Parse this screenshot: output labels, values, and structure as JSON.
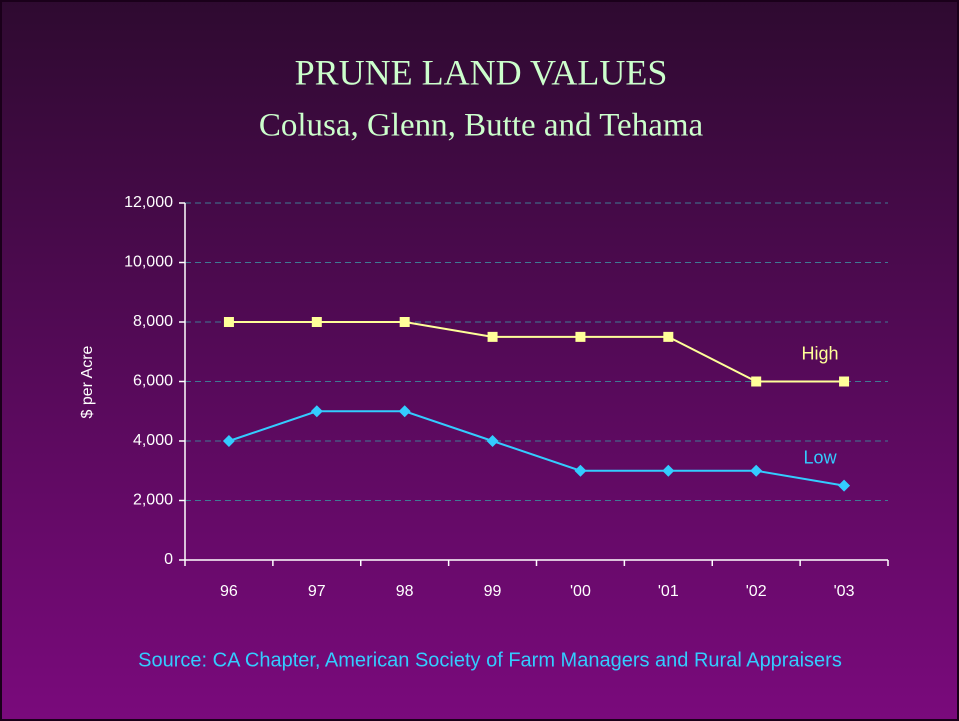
{
  "chart_data": {
    "type": "line",
    "title": "PRUNE LAND VALUES",
    "subtitle": "Colusa, Glenn, Butte and Tehama",
    "y_label": "$ per Acre",
    "source": "Source: CA Chapter, American Society of Farm Managers and Rural Appraisers",
    "categories": [
      "96",
      "97",
      "98",
      "99",
      "'00",
      "'01",
      "'02",
      "'03"
    ],
    "series": [
      {
        "name": "High",
        "color": "#ffff99",
        "marker": "square",
        "values": [
          8000,
          8000,
          8000,
          7500,
          7500,
          7500,
          6000,
          6000
        ]
      },
      {
        "name": "Low",
        "color": "#33ccff",
        "marker": "diamond",
        "values": [
          4000,
          5000,
          5000,
          4000,
          3000,
          3000,
          3000,
          2500
        ]
      }
    ],
    "ylim": [
      0,
      12000
    ],
    "yticks": [
      0,
      {
        "value": 2000,
        "label": "2,000"
      },
      {
        "value": 4000,
        "label": "4,000"
      },
      {
        "value": 6000,
        "label": "6,000"
      },
      {
        "value": 8000,
        "label": "8,000"
      },
      {
        "value": 10000,
        "label": "10,000"
      },
      {
        "value": 12000,
        "label": "12,000"
      }
    ],
    "grid": true
  }
}
